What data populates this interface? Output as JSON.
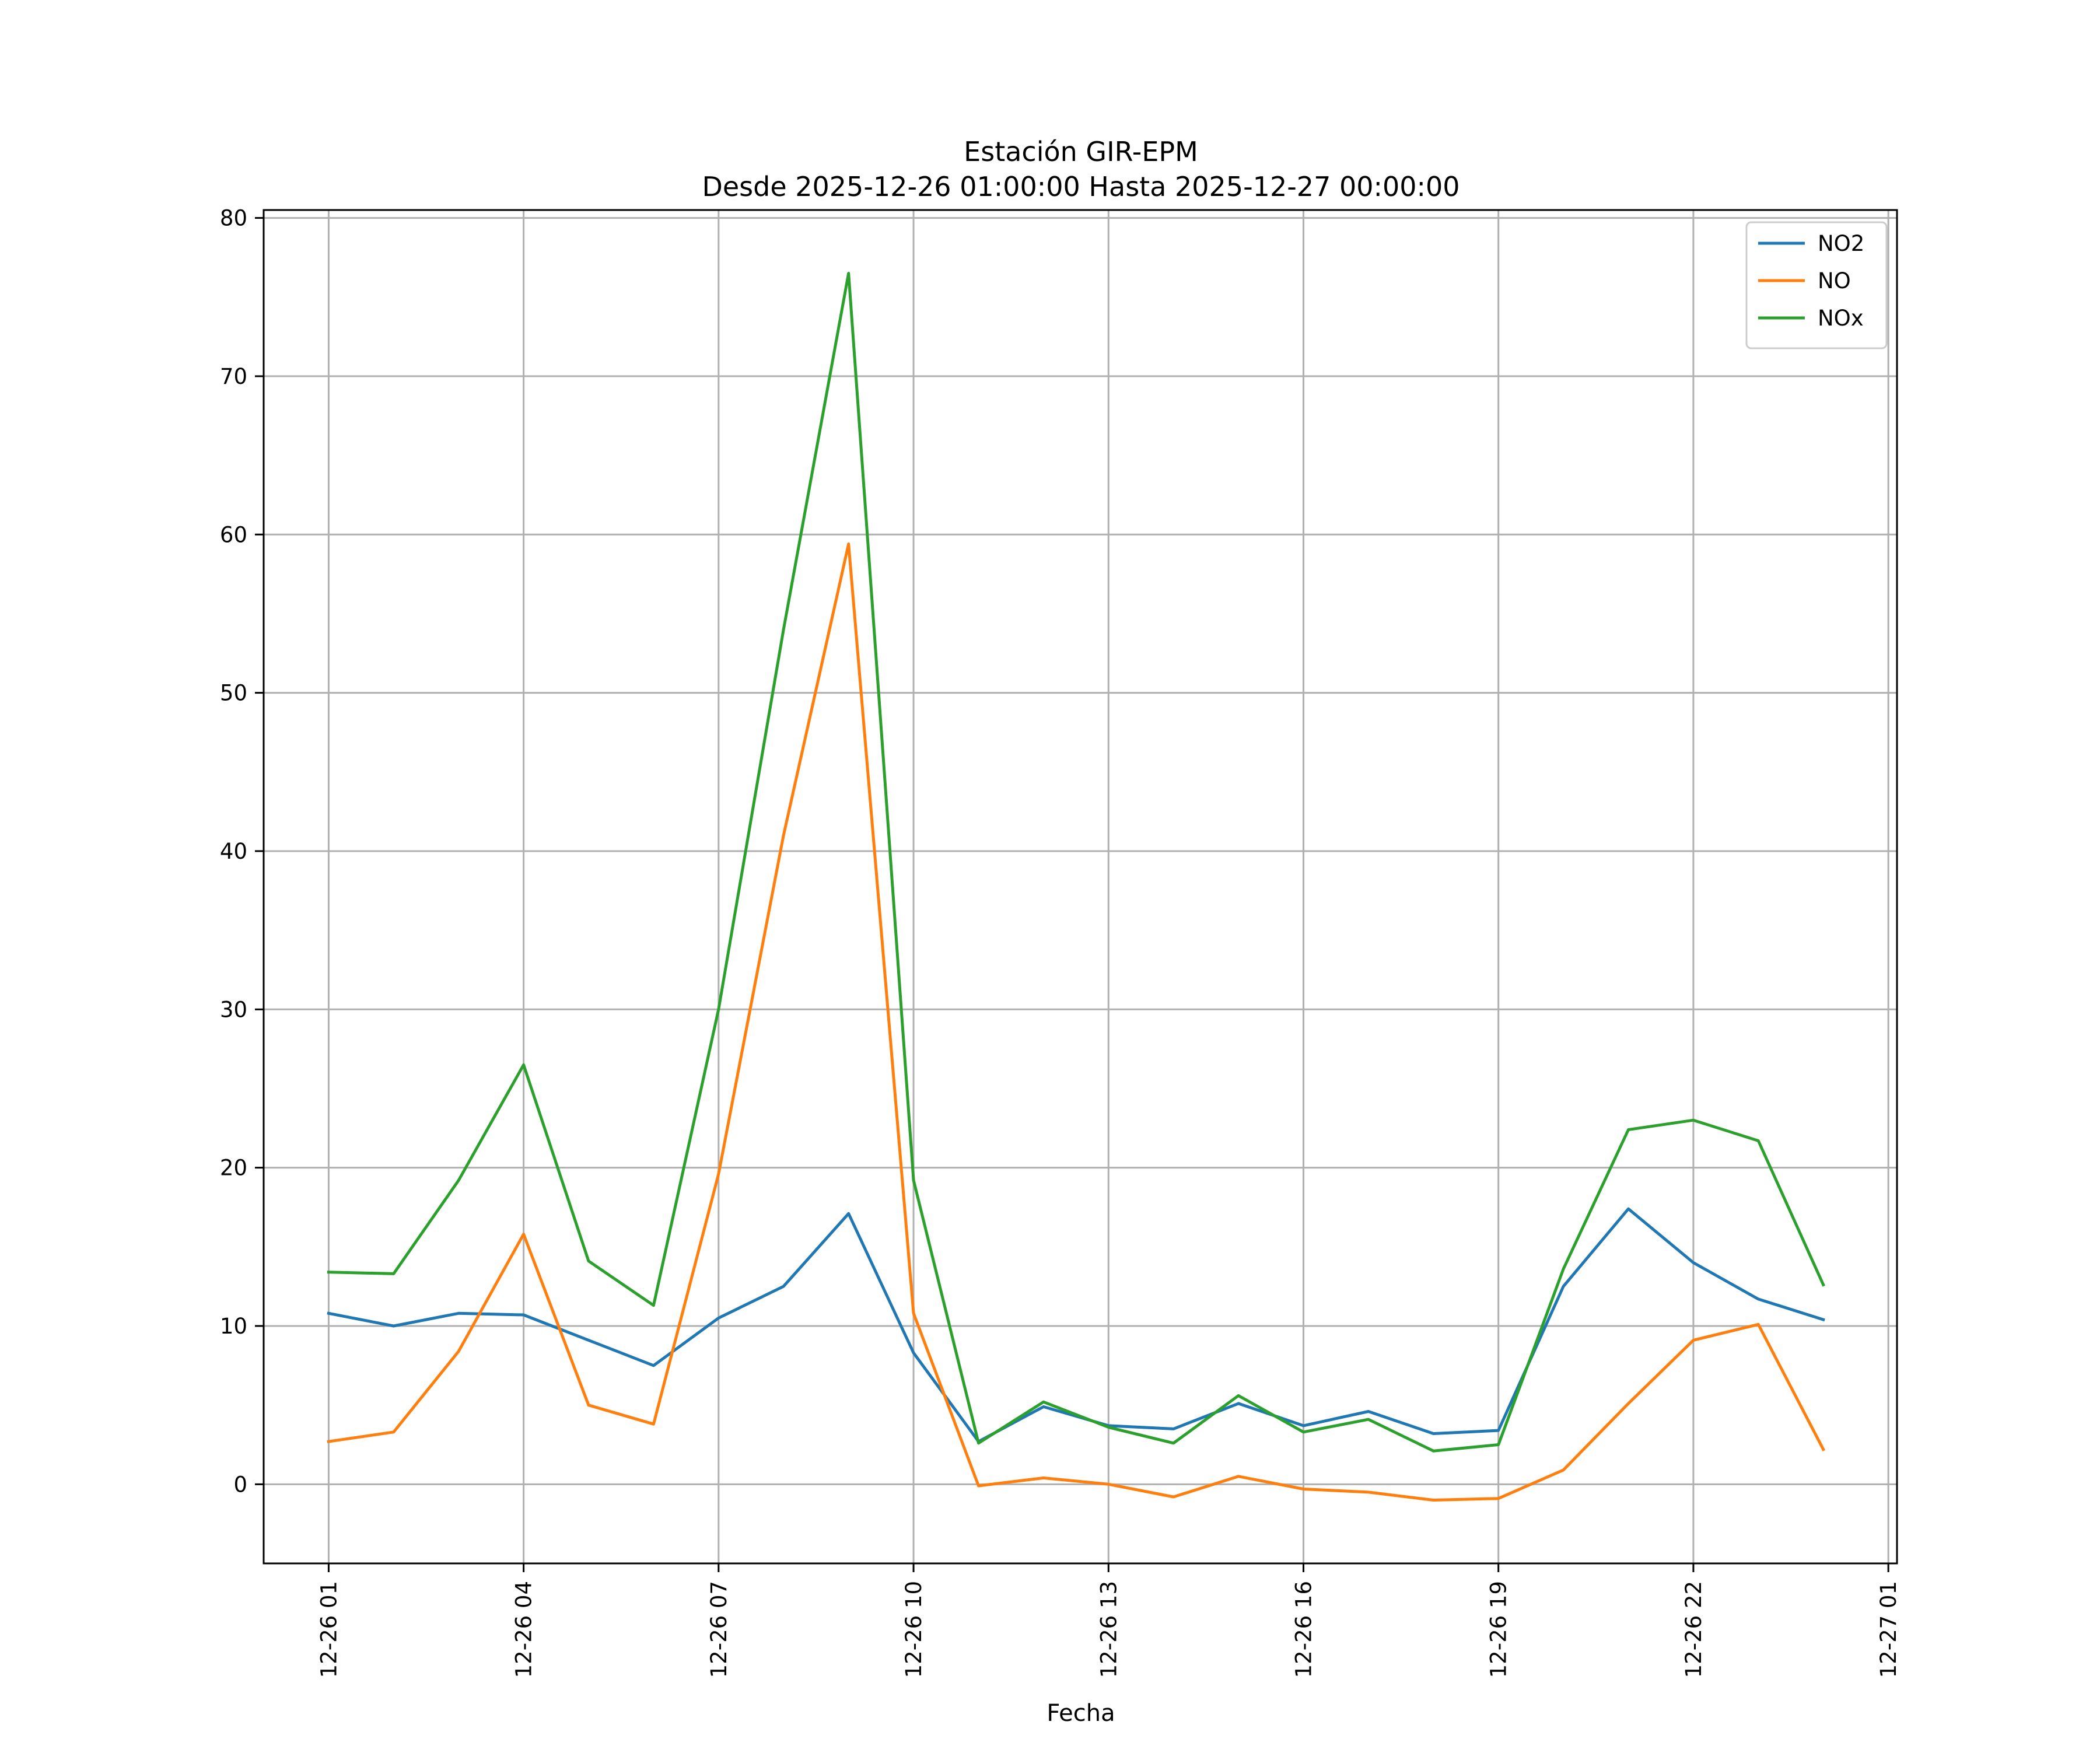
{
  "chart_data": {
    "type": "line",
    "title": "Estación GIR-EPM",
    "subtitle": "Desde 2025-12-26 01:00:00 Hasta 2025-12-27 00:00:00",
    "xlabel": "Fecha",
    "ylabel": "",
    "x": [
      "2025-12-26 01:00",
      "2025-12-26 02:00",
      "2025-12-26 03:00",
      "2025-12-26 04:00",
      "2025-12-26 05:00",
      "2025-12-26 06:00",
      "2025-12-26 07:00",
      "2025-12-26 08:00",
      "2025-12-26 09:00",
      "2025-12-26 10:00",
      "2025-12-26 11:00",
      "2025-12-26 12:00",
      "2025-12-26 13:00",
      "2025-12-26 14:00",
      "2025-12-26 15:00",
      "2025-12-26 16:00",
      "2025-12-26 17:00",
      "2025-12-26 18:00",
      "2025-12-26 19:00",
      "2025-12-26 20:00",
      "2025-12-26 21:00",
      "2025-12-26 22:00",
      "2025-12-26 23:00",
      "2025-12-27 00:00"
    ],
    "xlim": [
      "2025-12-26 00:00",
      "2025-12-27 01:08"
    ],
    "ylim": [
      -5,
      80.5
    ],
    "x_ticks": [
      {
        "x": "2025-12-26 01:00",
        "label": "12-26 01"
      },
      {
        "x": "2025-12-26 04:00",
        "label": "12-26 04"
      },
      {
        "x": "2025-12-26 07:00",
        "label": "12-26 07"
      },
      {
        "x": "2025-12-26 10:00",
        "label": "12-26 10"
      },
      {
        "x": "2025-12-26 13:00",
        "label": "12-26 13"
      },
      {
        "x": "2025-12-26 16:00",
        "label": "12-26 16"
      },
      {
        "x": "2025-12-26 19:00",
        "label": "12-26 19"
      },
      {
        "x": "2025-12-26 22:00",
        "label": "12-26 22"
      },
      {
        "x": "2025-12-27 01:00",
        "label": "12-27 01"
      }
    ],
    "y_ticks": [
      0,
      10,
      20,
      30,
      40,
      50,
      60,
      70,
      80
    ],
    "grid": true,
    "legend_position": "top-right",
    "series": [
      {
        "name": "NO2",
        "color": "#1f77b4",
        "values": [
          10.8,
          10.0,
          10.8,
          10.7,
          9.1,
          7.5,
          10.5,
          12.5,
          17.1,
          8.3,
          2.7,
          4.9,
          3.7,
          3.5,
          5.1,
          3.7,
          4.6,
          3.2,
          3.4,
          12.5,
          17.4,
          14.0,
          11.7,
          10.4
        ]
      },
      {
        "name": "NO",
        "color": "#ff7f0e",
        "values": [
          2.7,
          3.3,
          8.4,
          15.8,
          5.0,
          3.8,
          19.6,
          41.0,
          59.4,
          10.8,
          -0.1,
          0.4,
          0.0,
          -0.8,
          0.5,
          -0.3,
          -0.5,
          -1.0,
          -0.9,
          0.9,
          5.1,
          9.1,
          10.1,
          2.2
        ]
      },
      {
        "name": "NOx",
        "color": "#2ca02c",
        "values": [
          13.4,
          13.3,
          19.2,
          26.5,
          14.1,
          11.3,
          30.0,
          54.0,
          76.5,
          19.2,
          2.6,
          5.2,
          3.6,
          2.6,
          5.6,
          3.3,
          4.1,
          2.1,
          2.5,
          13.6,
          22.4,
          23.0,
          21.7,
          12.6
        ]
      }
    ]
  }
}
